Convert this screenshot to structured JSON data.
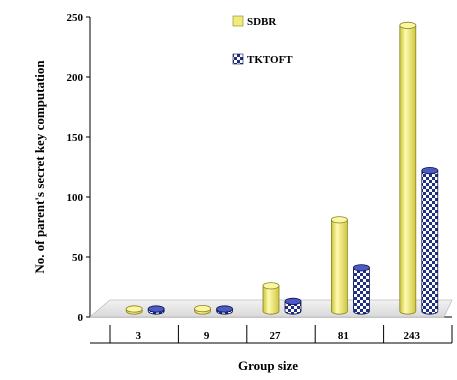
{
  "chart_data": {
    "type": "bar",
    "style": "3d-cylinder",
    "categories": [
      "3",
      "9",
      "27",
      "81",
      "243"
    ],
    "series": [
      {
        "name": "SDBR",
        "values": [
          1,
          7,
          26,
          81,
          243
        ],
        "color": "#f1ec7a",
        "pattern": "solid"
      },
      {
        "name": "TKTOFT",
        "values": [
          1,
          3,
          13,
          41,
          122
        ],
        "color": "#1f2f86",
        "pattern": "checkered"
      }
    ],
    "xlabel": "Group size",
    "ylabel": "No. of parent's secret key computation",
    "ylim": [
      0,
      250
    ],
    "yticks": [
      0,
      50,
      100,
      150,
      200,
      250
    ],
    "legend_position": "top-right",
    "grid": false
  }
}
